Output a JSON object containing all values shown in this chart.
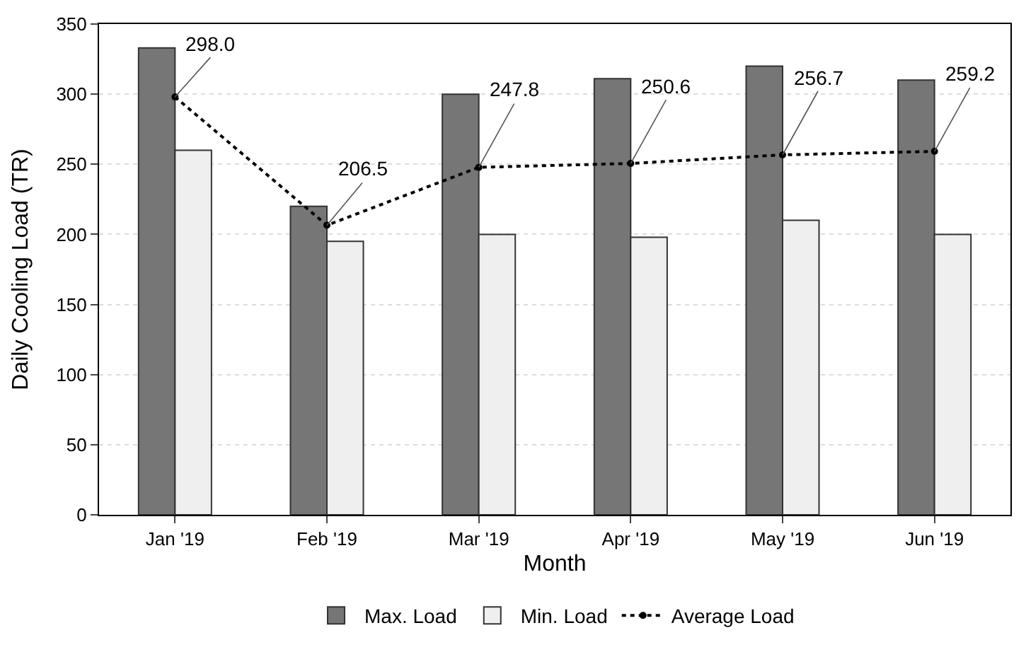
{
  "chart_data": {
    "type": "bar",
    "xlabel": "Month",
    "ylabel": "Daily Cooling Load (TR)",
    "categories": [
      "Jan '19",
      "Feb '19",
      "Mar '19",
      "Apr '19",
      "May '19",
      "Jun '19"
    ],
    "series": [
      {
        "name": "Max. Load",
        "color": "#767676",
        "values": [
          333,
          220,
          300,
          311,
          320,
          310
        ]
      },
      {
        "name": "Min. Load",
        "color": "#efefef",
        "values": [
          260,
          195,
          200,
          198,
          210,
          200
        ]
      },
      {
        "name": "Average Load",
        "type": "line",
        "color": "#000000",
        "marker": "circle",
        "line_style": "dotted",
        "values": [
          298.0,
          206.5,
          247.8,
          250.6,
          256.7,
          259.2
        ],
        "value_labels": [
          "298.0",
          "206.5",
          "247.8",
          "250.6",
          "256.7",
          "259.2"
        ]
      }
    ],
    "ylim": [
      0,
      350
    ],
    "yticks": [
      0,
      50,
      100,
      150,
      200,
      250,
      300,
      350
    ],
    "grid": "y",
    "legend": "bottom"
  }
}
